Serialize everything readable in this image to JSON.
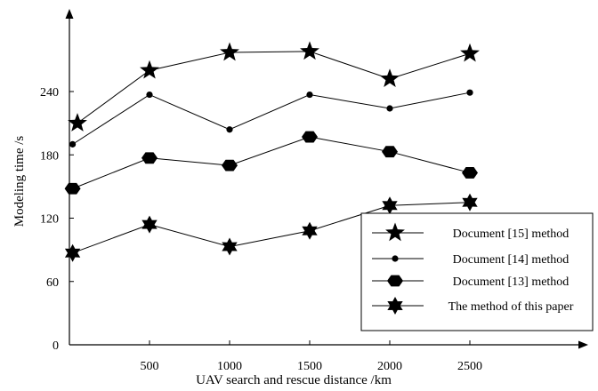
{
  "chart_data": {
    "type": "line",
    "xlabel": "UAV search and rescue distance /km",
    "ylabel": "Modeling time /s",
    "x_ticks": [
      500,
      1000,
      1500,
      2000,
      2500
    ],
    "y_ticks": [
      0,
      60,
      120,
      180,
      240
    ],
    "xlim": [
      0,
      2750
    ],
    "ylim": [
      0,
      300
    ],
    "grid": false,
    "legend_position": "bottom-right",
    "series": [
      {
        "name": "Document [15] method",
        "marker": "star5",
        "x": [
          50,
          500,
          1000,
          1500,
          2000,
          2500
        ],
        "y": [
          210,
          260,
          277,
          278,
          252,
          276
        ]
      },
      {
        "name": "Document [14] method",
        "marker": "dot",
        "x": [
          20,
          500,
          1000,
          1500,
          2000,
          2500
        ],
        "y": [
          190,
          237,
          204,
          237,
          224,
          239
        ]
      },
      {
        "name": "Document [13] method",
        "marker": "hexagon",
        "x": [
          20,
          500,
          1000,
          1500,
          2000,
          2500
        ],
        "y": [
          148,
          177,
          170,
          197,
          183,
          163
        ]
      },
      {
        "name": "The method of this paper",
        "marker": "star6",
        "x": [
          20,
          500,
          1000,
          1500,
          2000,
          2500
        ],
        "y": [
          87,
          114,
          93,
          108,
          132,
          135
        ]
      }
    ]
  },
  "colors": {
    "ink": "#000000",
    "background": "#ffffff"
  }
}
